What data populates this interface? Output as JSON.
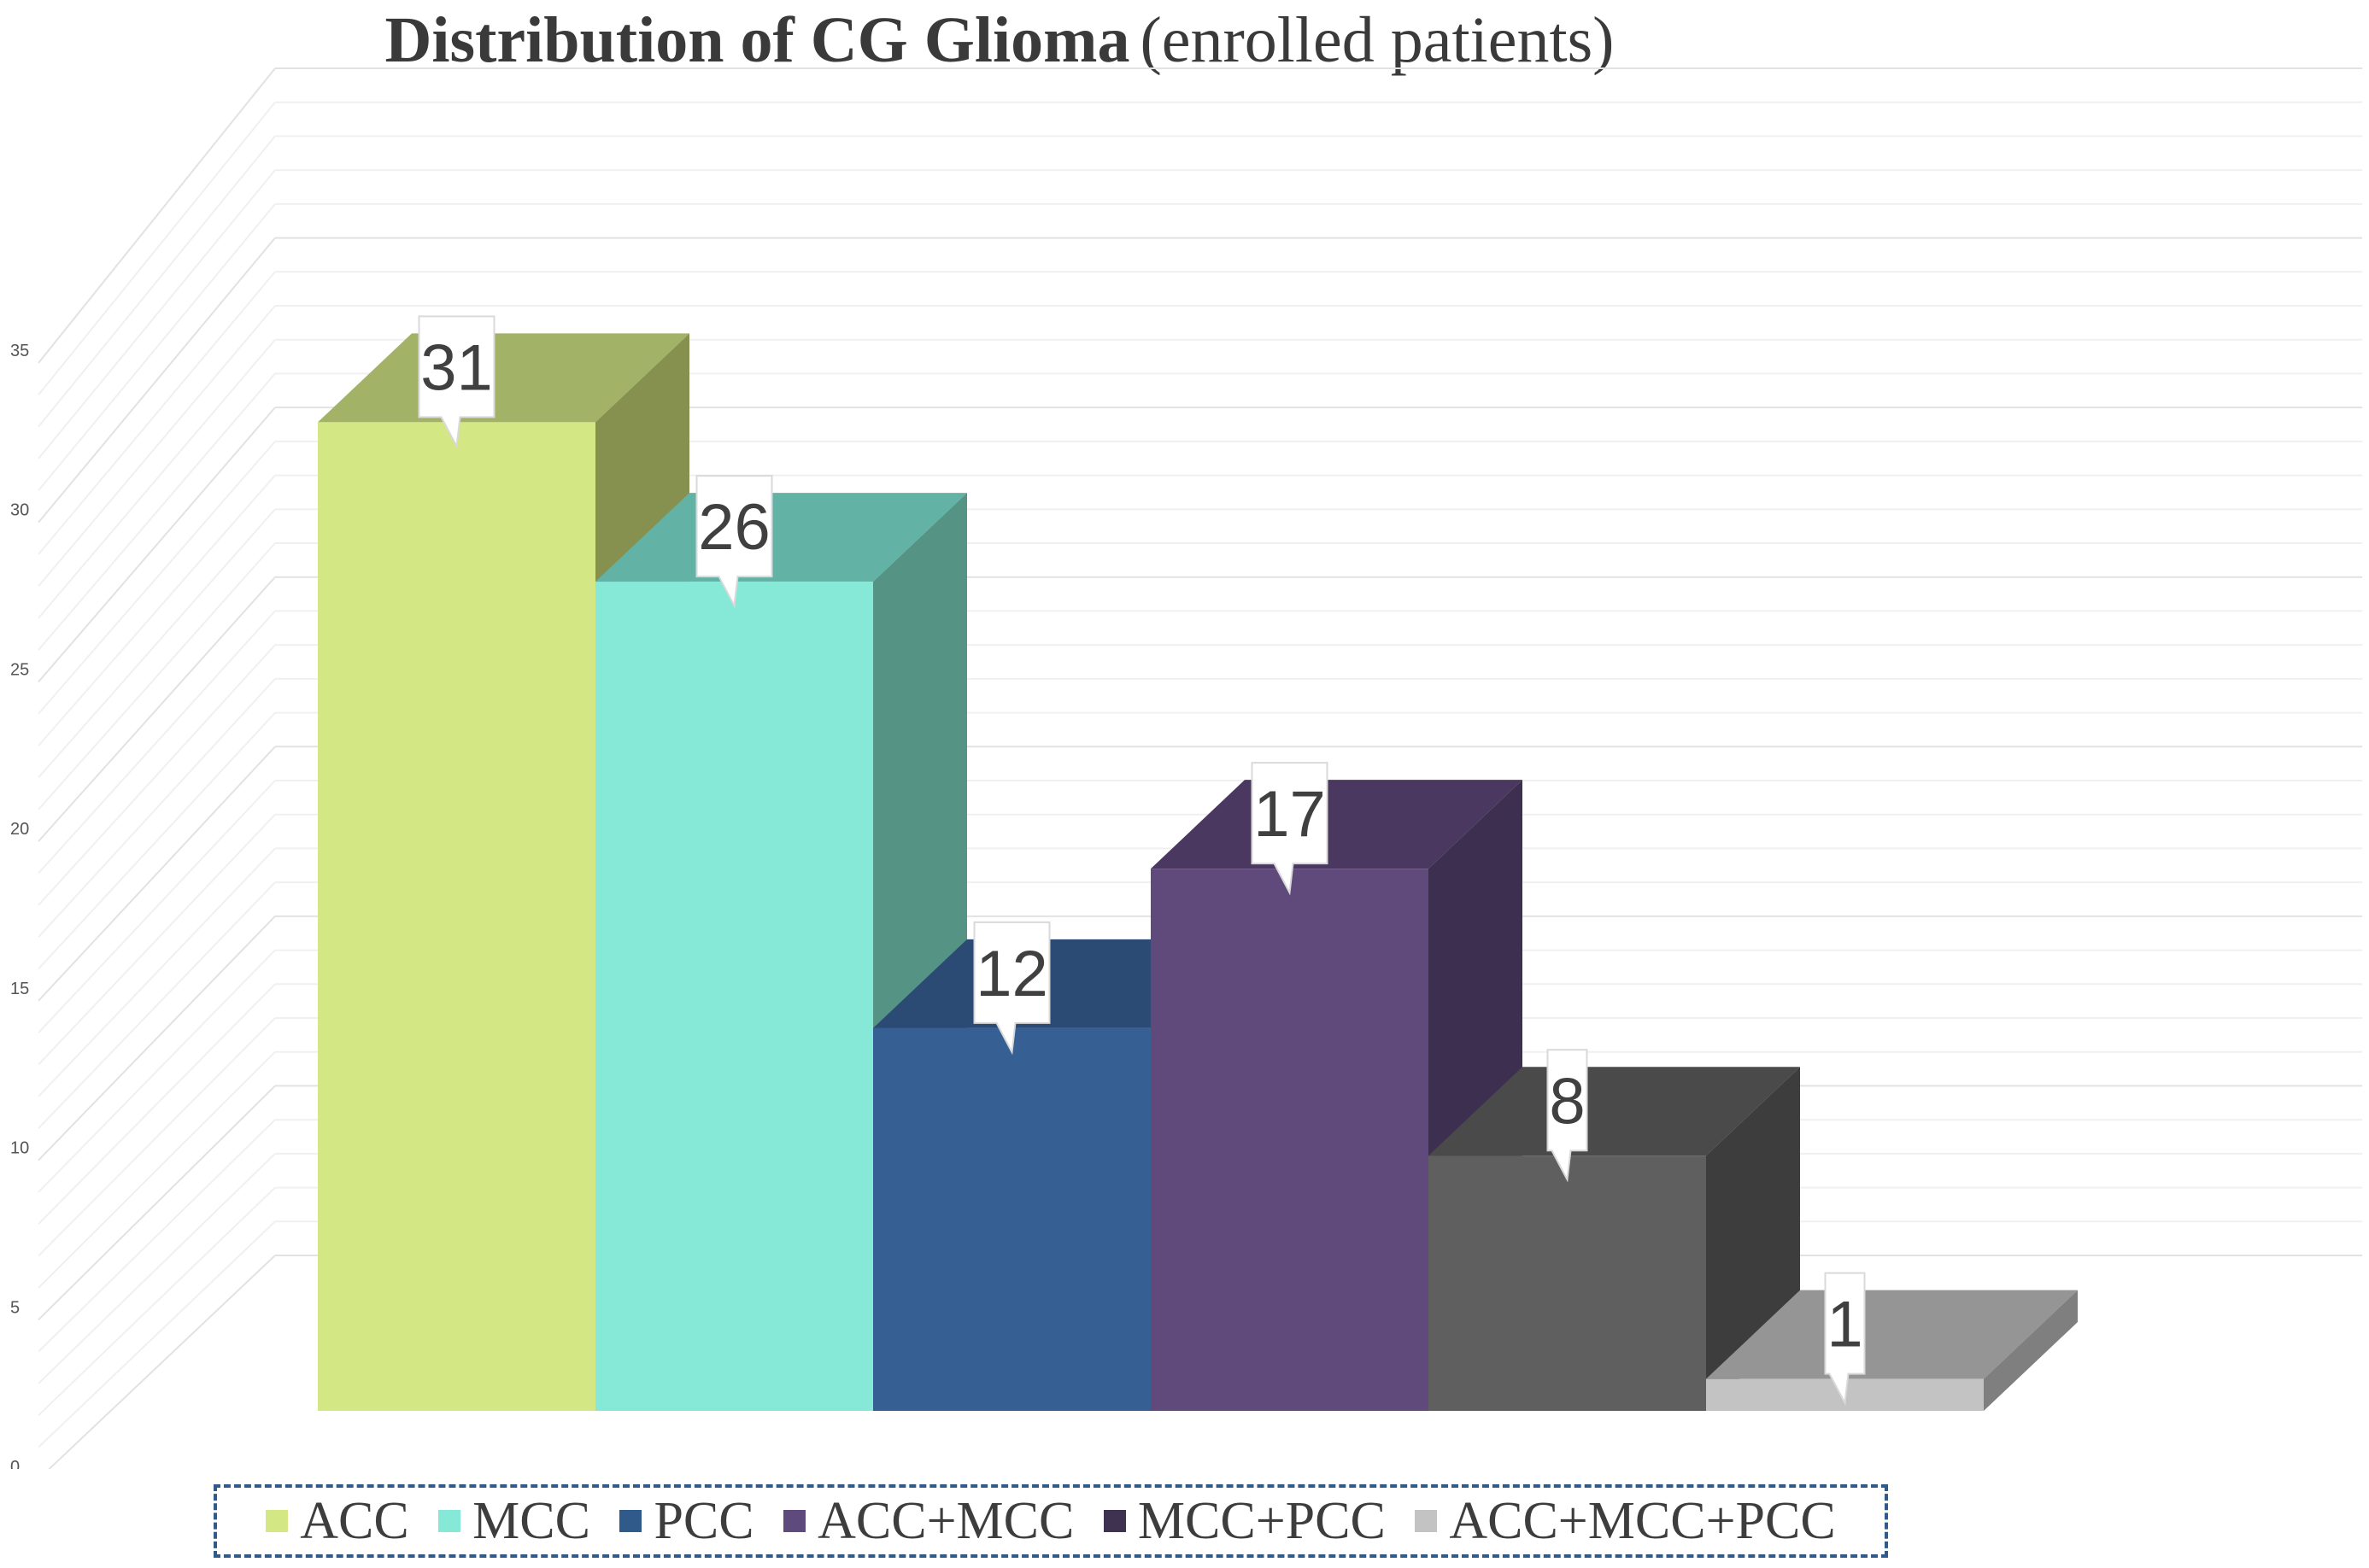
{
  "title": "Distribution of CG Glioma",
  "subtitle": "(enrolled patients)",
  "chart_data": {
    "type": "bar",
    "title": "Distribution of CG Glioma (enrolled patients)",
    "categories": [
      "ACC",
      "MCC",
      "PCC",
      "ACC+MCC",
      "MCC+PCC",
      "ACC+MCC+PCC"
    ],
    "values": [
      31,
      26,
      12,
      17,
      8,
      1
    ],
    "data_labels": [
      "31",
      "26",
      "12",
      "17",
      "8",
      "1"
    ],
    "xlabel": "",
    "ylabel": "",
    "ylim": [
      0,
      35
    ],
    "yticks": [
      "0",
      "5",
      "10",
      "15",
      "20",
      "25",
      "30",
      "35"
    ],
    "grid": true,
    "legend_position": "bottom",
    "style": "3d-column",
    "colors": [
      "#d3e784",
      "#86e9d8",
      "#366093",
      "#604a7b",
      "#5f5f5f",
      "#c3c3c3"
    ]
  },
  "legend": [
    {
      "label": "ACC",
      "color": "#d3e784"
    },
    {
      "label": "MCC",
      "color": "#86e9d8"
    },
    {
      "label": "PCC",
      "color": "#2f5a8a"
    },
    {
      "label": "ACC+MCC",
      "color": "#5e4a7c"
    },
    {
      "label": "MCC+PCC",
      "color": "#3f3150"
    },
    {
      "label": "ACC+MCC+PCC",
      "color": "#c3c3c3"
    }
  ]
}
